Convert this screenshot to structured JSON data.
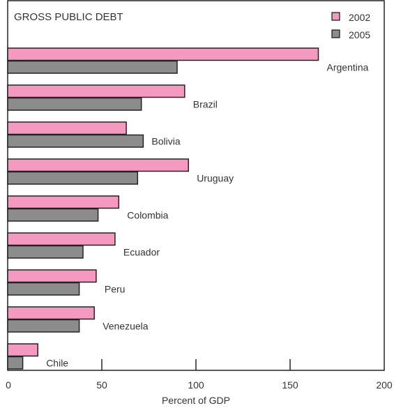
{
  "chart_data": {
    "type": "bar",
    "orientation": "horizontal",
    "title": "GROSS PUBLIC DEBT",
    "xlabel": "Percent of GDP",
    "xlim": [
      0,
      200
    ],
    "xticks": [
      0,
      50,
      100,
      150,
      200
    ],
    "categories": [
      "Argentina",
      "Brazil",
      "Bolivia",
      "Uruguay",
      "Colombia",
      "Ecuador",
      "Peru",
      "Venezuela",
      "Chile"
    ],
    "series": [
      {
        "name": "2002",
        "color": "#f49ac1",
        "values": [
          165,
          94,
          63,
          96,
          59,
          57,
          47,
          46,
          16
        ]
      },
      {
        "name": "2005",
        "color": "#8c8c8c",
        "values": [
          90,
          71,
          72,
          69,
          48,
          40,
          38,
          38,
          8
        ]
      }
    ],
    "legend_position": "top-right",
    "grid": false
  }
}
